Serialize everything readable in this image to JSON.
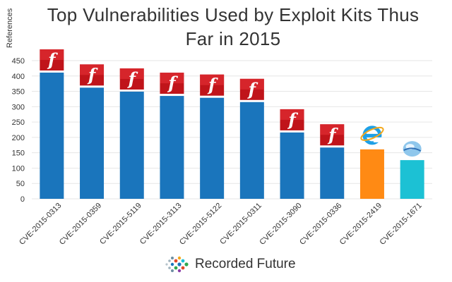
{
  "title_line1": "Top Vulnerabilities Used by Exploit Kits Thus",
  "title_line2": "Far in 2015",
  "brand": "Recorded Future",
  "colors": {
    "flash": "#1a75bc",
    "ie": "#ff8a14",
    "silverlight": "#1cc1d4",
    "icon_red": "#c0141a"
  },
  "chart_data": {
    "type": "bar",
    "title": "Top Vulnerabilities Used by Exploit Kits Thus Far in 2015",
    "ylabel": "References",
    "xlabel": "",
    "ylim": [
      0,
      450
    ],
    "yticks": [
      0,
      50,
      100,
      150,
      200,
      250,
      300,
      350,
      400,
      450
    ],
    "grid": true,
    "categories": [
      "CVE-2015-0313",
      "CVE-2015-0359",
      "CVE-2015-5119",
      "CVE-2015-3113",
      "CVE-2015-5122",
      "CVE-2015-0311",
      "CVE-2015-3090",
      "CVE-2015-0336",
      "CVE-2015-2419",
      "CVE-2015-1671"
    ],
    "values": [
      411,
      362,
      349,
      335,
      329,
      315,
      216,
      167,
      161,
      126
    ],
    "icons": [
      "flash-icon",
      "flash-icon",
      "flash-icon",
      "flash-icon",
      "flash-icon",
      "flash-icon",
      "flash-icon",
      "flash-icon",
      "ie-icon",
      "silverlight-icon"
    ],
    "bar_colors": [
      "#1a75bc",
      "#1a75bc",
      "#1a75bc",
      "#1a75bc",
      "#1a75bc",
      "#1a75bc",
      "#1a75bc",
      "#1a75bc",
      "#ff8a14",
      "#1cc1d4"
    ]
  }
}
